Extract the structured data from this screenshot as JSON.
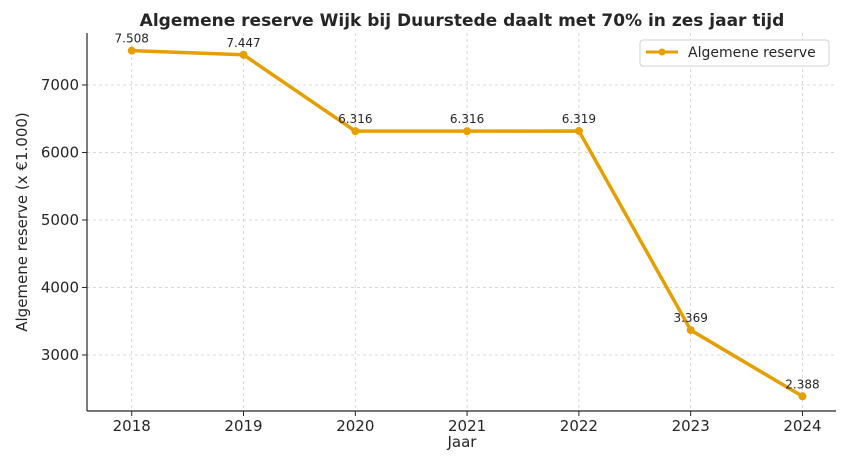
{
  "chart_data": {
    "type": "line",
    "title": "Algemene reserve Wijk bij Duurstede daalt met 70% in zes jaar tijd",
    "xlabel": "Jaar",
    "ylabel": "Algemene reserve (x €1.000)",
    "x": [
      2018,
      2019,
      2020,
      2021,
      2022,
      2023,
      2024
    ],
    "x_tick_labels": [
      "2018",
      "2019",
      "2020",
      "2021",
      "2022",
      "2023",
      "2024"
    ],
    "y_ticks": [
      3000,
      4000,
      5000,
      6000,
      7000
    ],
    "y_tick_labels": [
      "3000",
      "4000",
      "5000",
      "6000",
      "7000"
    ],
    "ylim": [
      2170,
      7770
    ],
    "grid": true,
    "legend_position": "top-right",
    "series": [
      {
        "name": "Algemene reserve",
        "color": "#e69f00",
        "values": [
          7508,
          7447,
          6316,
          6316,
          6319,
          3369,
          2388
        ],
        "data_labels": [
          "7.508",
          "7.447",
          "6.316",
          "6.316",
          "6.319",
          "3.369",
          "2.388"
        ]
      }
    ]
  }
}
